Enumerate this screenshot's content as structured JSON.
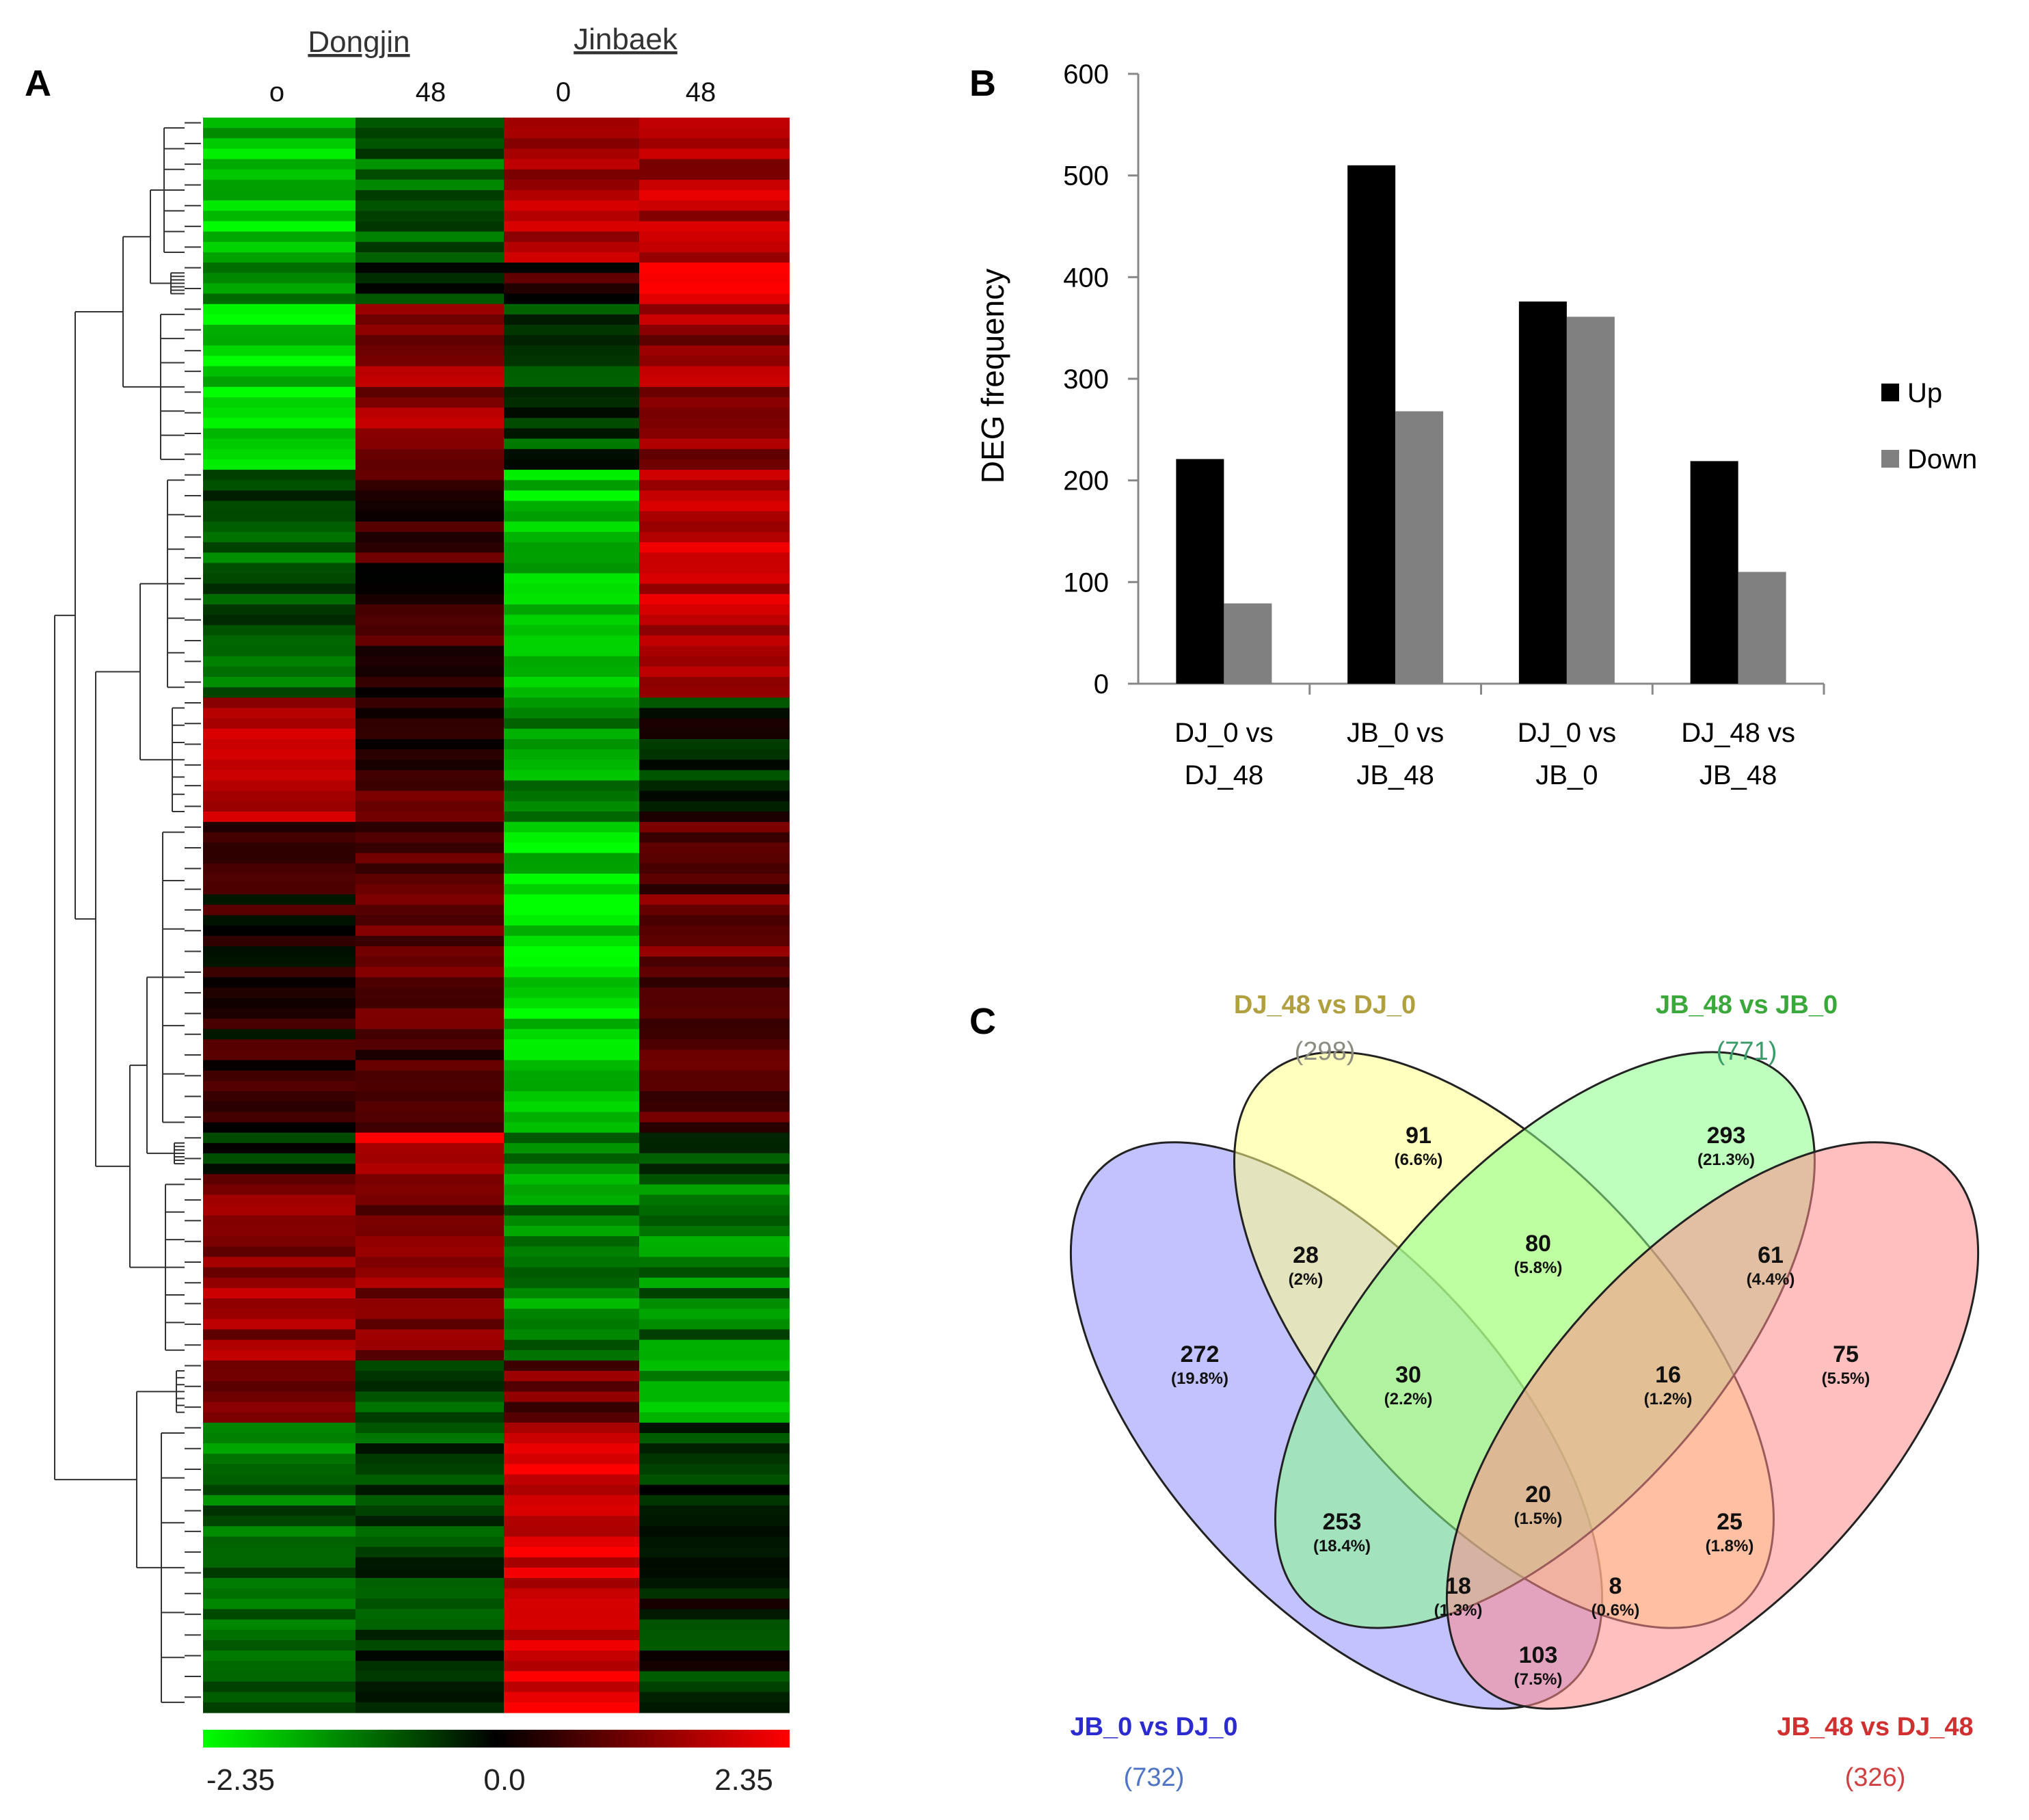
{
  "panels": {
    "A": {
      "letter": "A"
    },
    "B": {
      "letter": "B"
    },
    "C": {
      "letter": "C"
    }
  },
  "colors": {
    "up": "#000000",
    "down": "#808080",
    "heat_low": "#00ff00",
    "heat_mid": "#000000",
    "heat_high": "#ff0000",
    "venn_a": "#9999ff",
    "venn_b": "#ffff88",
    "venn_c": "#88ff88",
    "venn_d": "#ff8a8a"
  },
  "chart_data": [
    {
      "id": "heatmap",
      "type": "heatmap",
      "groups": [
        {
          "label": "Dongjin",
          "columns": [
            "o",
            "48"
          ]
        },
        {
          "label": "Jinbaek",
          "columns": [
            "0",
            "48"
          ]
        }
      ],
      "colorbar": {
        "min": -2.35,
        "mid": 0.0,
        "max": 2.35,
        "tick_labels": [
          "-2.35",
          "0.0",
          "2.35"
        ]
      },
      "clusters": [
        {
          "rows": 14,
          "values": [
            -1.8,
            -0.9,
            1.5,
            1.6
          ]
        },
        {
          "rows": 4,
          "values": [
            -1.5,
            -0.3,
            0.4,
            2.2
          ]
        },
        {
          "rows": 16,
          "values": [
            -2.0,
            1.3,
            -0.6,
            1.4
          ]
        },
        {
          "rows": 22,
          "values": [
            -0.8,
            0.5,
            -1.9,
            1.8
          ]
        },
        {
          "rows": 12,
          "values": [
            1.6,
            0.6,
            -1.4,
            -0.3
          ]
        },
        {
          "rows": 30,
          "values": [
            0.3,
            0.7,
            -2.0,
            0.9
          ]
        },
        {
          "rows": 4,
          "values": [
            -0.5,
            2.0,
            -1.0,
            -0.8
          ]
        },
        {
          "rows": 18,
          "values": [
            1.4,
            1.2,
            -1.2,
            -1.1
          ]
        },
        {
          "rows": 6,
          "values": [
            1.2,
            -0.6,
            0.9,
            -1.5
          ]
        },
        {
          "rows": 28,
          "values": [
            -1.0,
            -0.6,
            2.0,
            -0.3
          ]
        }
      ]
    },
    {
      "id": "deg-bar",
      "type": "bar",
      "ylabel": "DEG frequency",
      "ylim": [
        0,
        600
      ],
      "yticks": [
        "0",
        "100",
        "200",
        "300",
        "400",
        "500",
        "600"
      ],
      "categories": [
        [
          "DJ_0 vs",
          "DJ_48"
        ],
        [
          "JB_0 vs",
          "JB_48"
        ],
        [
          "DJ_0 vs",
          "JB_0"
        ],
        [
          "DJ_48 vs",
          "JB_48"
        ]
      ],
      "series": [
        {
          "name": "Up",
          "values": [
            221,
            510,
            376,
            219
          ]
        },
        {
          "name": "Down",
          "values": [
            79,
            268,
            361,
            110
          ]
        }
      ],
      "legend": "right"
    },
    {
      "id": "venn",
      "type": "venn",
      "sets": [
        {
          "name": "JB_0 vs DJ_0",
          "total": "(732)",
          "name_color": "#2b2bd0",
          "total_color": "#4f74c4"
        },
        {
          "name": "DJ_48 vs DJ_0",
          "total": "(298)",
          "name_color": "#b0a040",
          "total_color": "#8c8c80"
        },
        {
          "name": "JB_48 vs JB_0",
          "total": "(771)",
          "name_color": "#3aa83a",
          "total_color": "#3a9a6a"
        },
        {
          "name": "JB_48 vs DJ_48",
          "total": "(326)",
          "name_color": "#d03030",
          "total_color": "#d04040"
        }
      ],
      "regions": [
        {
          "count": "91",
          "pct": "(6.6%)"
        },
        {
          "count": "293",
          "pct": "(21.3%)"
        },
        {
          "count": "28",
          "pct": "(2%)"
        },
        {
          "count": "80",
          "pct": "(5.8%)"
        },
        {
          "count": "61",
          "pct": "(4.4%)"
        },
        {
          "count": "272",
          "pct": "(19.8%)"
        },
        {
          "count": "30",
          "pct": "(2.2%)"
        },
        {
          "count": "16",
          "pct": "(1.2%)"
        },
        {
          "count": "75",
          "pct": "(5.5%)"
        },
        {
          "count": "20",
          "pct": "(1.5%)"
        },
        {
          "count": "253",
          "pct": "(18.4%)"
        },
        {
          "count": "25",
          "pct": "(1.8%)"
        },
        {
          "count": "18",
          "pct": "(1.3%)"
        },
        {
          "count": "8",
          "pct": "(0.6%)"
        },
        {
          "count": "103",
          "pct": "(7.5%)"
        }
      ]
    }
  ]
}
